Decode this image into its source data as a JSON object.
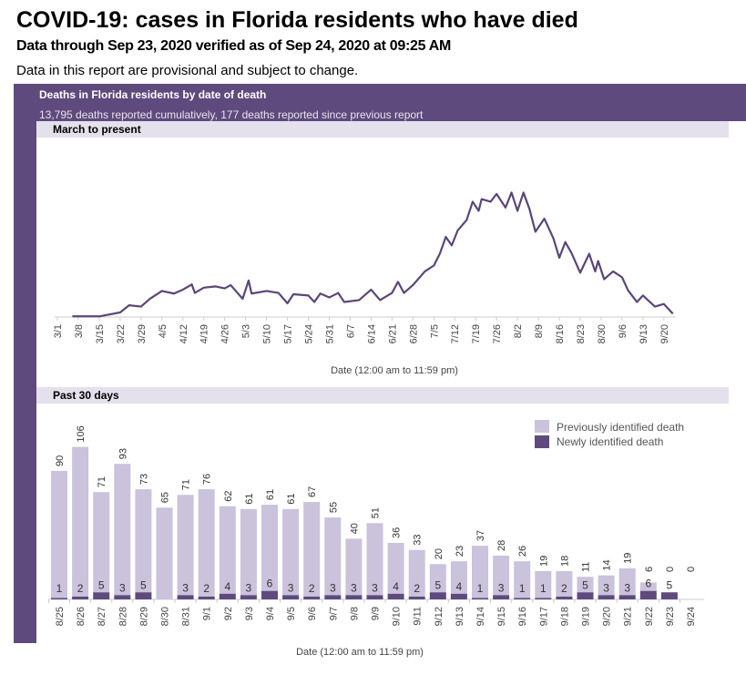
{
  "header": {
    "title": "COVID-19: cases in Florida residents who have died",
    "subtitle": "Data through Sep 23, 2020 verified as of Sep 24, 2020 at 09:25 AM",
    "note": "Data in this report are provisional and subject to change."
  },
  "panel": {
    "title": "Deaths in Florida residents by date of death",
    "summary": "13,795 deaths reported cumulatively, 177 deaths reported since previous report",
    "section1": "March to present",
    "section2": "Past 30 days"
  },
  "colors": {
    "panel": "#5f4a7d",
    "band": "#e4e0ec",
    "line": "#5a4678",
    "previous": "#cbc2dc",
    "newly": "#5f4a7d"
  },
  "chart_data": [
    {
      "type": "line",
      "title": "March to present",
      "xlabel": "Date (12:00 am to 11:59 pm)",
      "ylabel": "",
      "y_axis_shown": false,
      "grid": false,
      "x_start": "3/1",
      "xticks": [
        "3/1",
        "3/8",
        "3/15",
        "3/22",
        "3/29",
        "4/5",
        "4/12",
        "4/19",
        "4/26",
        "5/3",
        "5/10",
        "5/17",
        "5/24",
        "5/31",
        "6/7",
        "6/14",
        "6/21",
        "6/28",
        "7/5",
        "7/12",
        "7/19",
        "7/26",
        "8/2",
        "8/9",
        "8/16",
        "8/23",
        "8/30",
        "9/6",
        "9/13",
        "9/20"
      ],
      "points": [
        [
          "3/6",
          1
        ],
        [
          "3/15",
          1
        ],
        [
          "3/22",
          7
        ],
        [
          "3/25",
          18
        ],
        [
          "3/29",
          16
        ],
        [
          "4/1",
          28
        ],
        [
          "4/5",
          40
        ],
        [
          "4/9",
          36
        ],
        [
          "4/12",
          42
        ],
        [
          "4/15",
          50
        ],
        [
          "4/16",
          37
        ],
        [
          "4/19",
          45
        ],
        [
          "4/23",
          47
        ],
        [
          "4/26",
          44
        ],
        [
          "4/28",
          49
        ],
        [
          "5/2",
          28
        ],
        [
          "5/4",
          56
        ],
        [
          "5/5",
          36
        ],
        [
          "5/10",
          40
        ],
        [
          "5/14",
          37
        ],
        [
          "5/17",
          21
        ],
        [
          "5/19",
          35
        ],
        [
          "5/24",
          33
        ],
        [
          "5/26",
          23
        ],
        [
          "5/28",
          36
        ],
        [
          "5/31",
          30
        ],
        [
          "6/3",
          37
        ],
        [
          "6/5",
          23
        ],
        [
          "6/10",
          26
        ],
        [
          "6/14",
          42
        ],
        [
          "6/17",
          26
        ],
        [
          "6/21",
          37
        ],
        [
          "6/23",
          54
        ],
        [
          "6/25",
          37
        ],
        [
          "6/28",
          49
        ],
        [
          "7/2",
          70
        ],
        [
          "7/5",
          79
        ],
        [
          "7/7",
          97
        ],
        [
          "7/9",
          123
        ],
        [
          "7/11",
          110
        ],
        [
          "7/13",
          133
        ],
        [
          "7/16",
          149
        ],
        [
          "7/18",
          177
        ],
        [
          "7/20",
          163
        ],
        [
          "7/21",
          181
        ],
        [
          "7/24",
          177
        ],
        [
          "7/26",
          189
        ],
        [
          "7/29",
          168
        ],
        [
          "7/31",
          191
        ],
        [
          "8/2",
          163
        ],
        [
          "8/4",
          191
        ],
        [
          "8/6",
          166
        ],
        [
          "8/8",
          131
        ],
        [
          "8/11",
          151
        ],
        [
          "8/14",
          121
        ],
        [
          "8/16",
          91
        ],
        [
          "8/18",
          115
        ],
        [
          "8/20",
          99
        ],
        [
          "8/23",
          68
        ],
        [
          "8/26",
          97
        ],
        [
          "8/28",
          70
        ],
        [
          "8/29",
          86
        ],
        [
          "8/31",
          58
        ],
        [
          "9/3",
          70
        ],
        [
          "9/6",
          61
        ],
        [
          "9/8",
          41
        ],
        [
          "9/11",
          23
        ],
        [
          "9/13",
          33
        ],
        [
          "9/17",
          16
        ],
        [
          "9/20",
          20
        ],
        [
          "9/23",
          5
        ]
      ]
    },
    {
      "type": "bar",
      "stacked": true,
      "title": "Past 30 days",
      "xlabel": "Date (12:00 am to 11:59 pm)",
      "legend_position": "top-right",
      "categories": [
        "8/25",
        "8/26",
        "8/27",
        "8/28",
        "8/29",
        "8/30",
        "8/31",
        "9/1",
        "9/2",
        "9/3",
        "9/4",
        "9/5",
        "9/6",
        "9/7",
        "9/8",
        "9/9",
        "9/10",
        "9/11",
        "9/12",
        "9/13",
        "9/14",
        "9/15",
        "9/16",
        "9/17",
        "9/18",
        "9/19",
        "9/20",
        "9/21",
        "9/22",
        "9/23",
        "9/24"
      ],
      "series": [
        {
          "name": "Previously identified death",
          "values": [
            90,
            106,
            71,
            93,
            73,
            65,
            71,
            76,
            62,
            61,
            61,
            61,
            67,
            55,
            40,
            51,
            36,
            33,
            20,
            23,
            37,
            28,
            26,
            19,
            18,
            11,
            14,
            19,
            6,
            0,
            0
          ]
        },
        {
          "name": "Newly identified death",
          "values": [
            1,
            2,
            5,
            3,
            5,
            null,
            3,
            2,
            4,
            3,
            6,
            3,
            2,
            3,
            3,
            3,
            4,
            2,
            5,
            4,
            1,
            3,
            1,
            1,
            2,
            5,
            3,
            3,
            6,
            5,
            null
          ]
        }
      ]
    }
  ]
}
